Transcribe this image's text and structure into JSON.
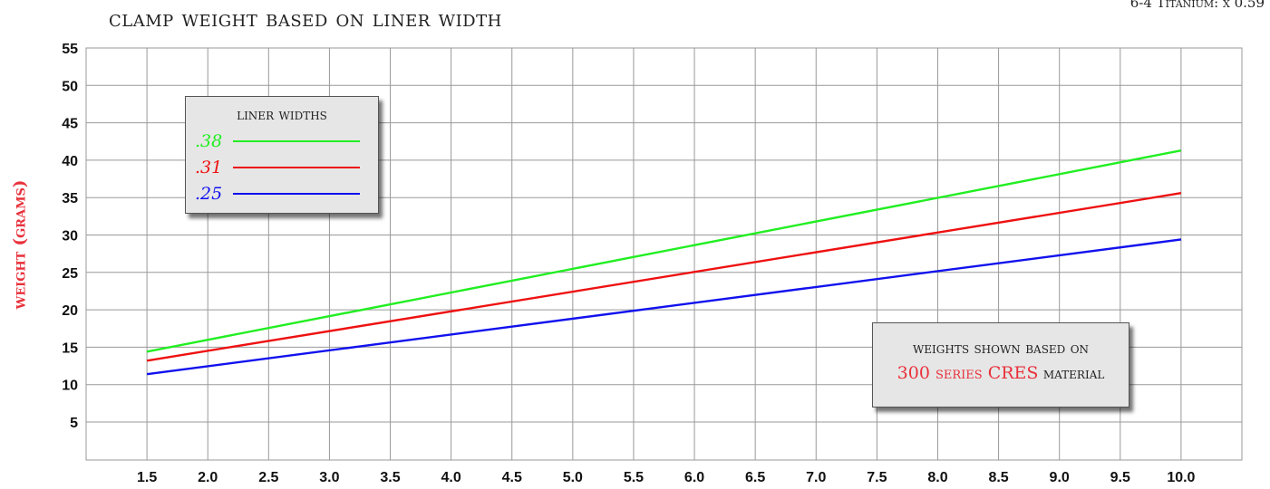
{
  "header": {
    "title": "clamp weight based on liner width",
    "corner_note": "6-4 Titanium: x 0.59"
  },
  "legend": {
    "title": "liner widths",
    "items": [
      {
        "label": ".38",
        "color": "#22ee22"
      },
      {
        "label": ".31",
        "color": "#ee1111"
      },
      {
        "label": ".25",
        "color": "#1111ee"
      }
    ]
  },
  "note": {
    "line1": "weights shown based on",
    "highlight": "300 series CRES",
    "line2_rest": " material"
  },
  "chart_data": {
    "type": "line",
    "title": "clamp weight based on liner width",
    "ylabel": "weight (grams)",
    "xlabel": "",
    "x": [
      1.5,
      10.0
    ],
    "xticks": [
      "1.5",
      "2.0",
      "2.5",
      "3.0",
      "3.5",
      "4.0",
      "4.5",
      "5.0",
      "5.5",
      "6.0",
      "6.5",
      "7.0",
      "7.5",
      "8.0",
      "8.5",
      "9.0",
      "9.5",
      "10.0"
    ],
    "yticks": [
      "55",
      "50",
      "45",
      "40",
      "35",
      "30",
      "25",
      "20",
      "15",
      "10",
      "5"
    ],
    "ylim": [
      0,
      55
    ],
    "grid": true,
    "series": [
      {
        "name": ".38",
        "color": "#22ee22",
        "x": [
          1.5,
          10.0
        ],
        "values": [
          14.4,
          41.3
        ]
      },
      {
        "name": ".31",
        "color": "#ee1111",
        "x": [
          1.5,
          10.0
        ],
        "values": [
          13.2,
          35.6
        ]
      },
      {
        "name": ".25",
        "color": "#1111ee",
        "x": [
          1.5,
          10.0
        ],
        "values": [
          11.4,
          29.4
        ]
      }
    ]
  }
}
